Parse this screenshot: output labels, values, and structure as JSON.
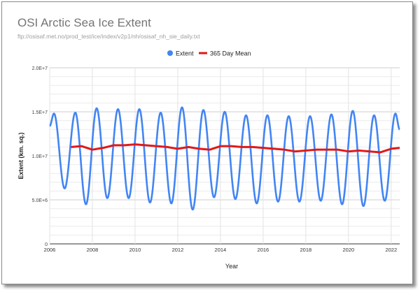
{
  "chart_data": {
    "type": "line",
    "title": "OSI Arctic Sea Ice Extent",
    "subtitle": "ftp://osisaf.met.no/prod_test/ice/index/v2p1/nh/osisaf_nh_sie_daily.txt",
    "xlabel": "Year",
    "ylabel": "Extent (km. sq.)",
    "xlim": [
      2006,
      2022.4
    ],
    "ylim": [
      0,
      20000000
    ],
    "x_ticks": [
      2006,
      2008,
      2010,
      2012,
      2014,
      2016,
      2018,
      2020,
      2022
    ],
    "x_tick_labels": [
      "2006",
      "2008",
      "2010",
      "2012",
      "2014",
      "2016",
      "2018",
      "2020",
      "2022"
    ],
    "y_ticks": [
      0,
      5000000,
      10000000,
      15000000,
      20000000
    ],
    "y_tick_labels": [
      "0",
      "5.0E+6",
      "1.0E+7",
      "1.5E+7",
      "2.0E+7"
    ],
    "minor_gridlines": true,
    "legend_position": "top",
    "series": [
      {
        "name": "Extent",
        "color": "#4285f4",
        "style": "points",
        "x": [
          2006.0,
          2006.2,
          2006.7,
          2007.2,
          2007.7,
          2008.2,
          2008.7,
          2009.2,
          2009.7,
          2010.2,
          2010.7,
          2011.2,
          2011.7,
          2012.2,
          2012.7,
          2013.2,
          2013.7,
          2014.2,
          2014.7,
          2015.2,
          2015.7,
          2016.2,
          2016.7,
          2017.2,
          2017.7,
          2018.2,
          2018.7,
          2019.2,
          2019.7,
          2020.2,
          2020.7,
          2021.2,
          2021.7,
          2022.2,
          2022.4
        ],
        "values": [
          13400000,
          14800000,
          6300000,
          14900000,
          4500000,
          15400000,
          5200000,
          15300000,
          5200000,
          15300000,
          4700000,
          14900000,
          4600000,
          15500000,
          3900000,
          15200000,
          5300000,
          15000000,
          5100000,
          14600000,
          4600000,
          14600000,
          4800000,
          14500000,
          4800000,
          14500000,
          4900000,
          14700000,
          4500000,
          15100000,
          4300000,
          14600000,
          4900000,
          14800000,
          13000000
        ]
      },
      {
        "name": "365 Day Mean",
        "color": "#e0191b",
        "style": "line",
        "x": [
          2007.0,
          2007.5,
          2008.0,
          2008.5,
          2009.0,
          2009.5,
          2010.0,
          2010.5,
          2011.0,
          2011.5,
          2012.0,
          2012.5,
          2013.0,
          2013.5,
          2014.0,
          2014.5,
          2015.0,
          2015.5,
          2016.0,
          2016.5,
          2017.0,
          2017.5,
          2018.0,
          2018.5,
          2019.0,
          2019.5,
          2020.0,
          2020.5,
          2021.0,
          2021.5,
          2022.0,
          2022.4
        ],
        "values": [
          11000000,
          11100000,
          10700000,
          10900000,
          11200000,
          11200000,
          11300000,
          11200000,
          11100000,
          11000000,
          10800000,
          11000000,
          10800000,
          10700000,
          11100000,
          11100000,
          11000000,
          11000000,
          10900000,
          10800000,
          10700000,
          10500000,
          10600000,
          10700000,
          10700000,
          10700000,
          10500000,
          10600000,
          10500000,
          10400000,
          10800000,
          10900000
        ]
      }
    ]
  }
}
